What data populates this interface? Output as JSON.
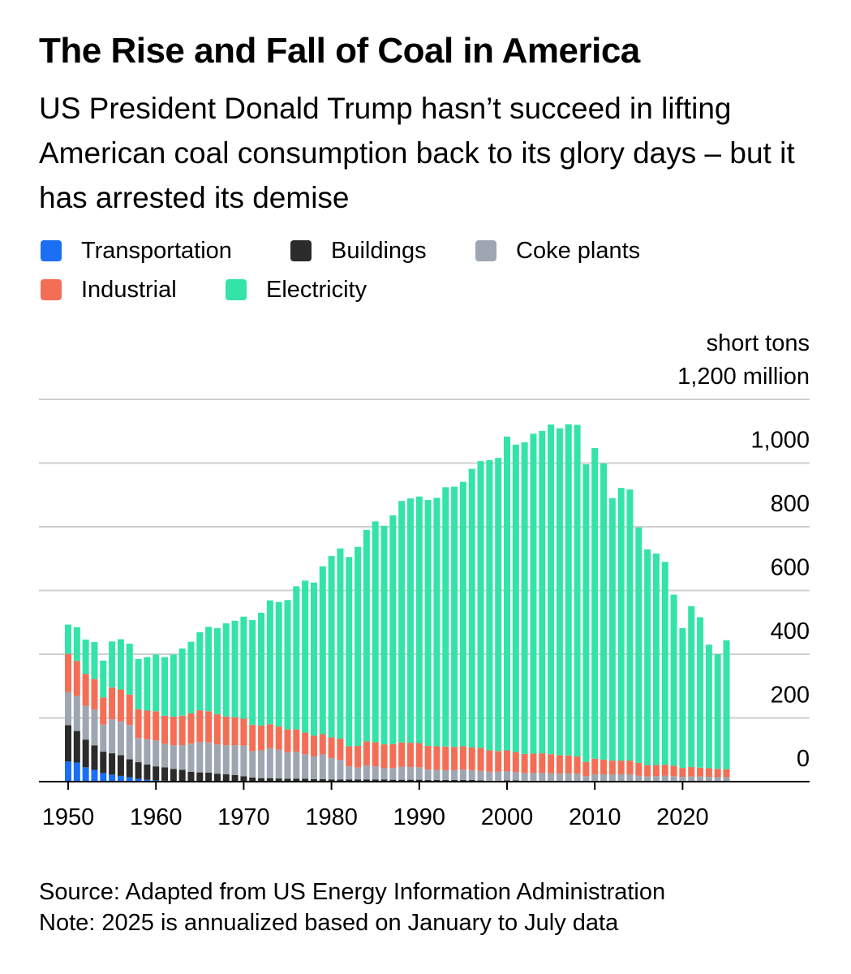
{
  "title": "The Rise and Fall of Coal in America",
  "subtitle": "US President Donald Trump hasn’t succeed in lifting American coal consumption back to its glory days – but it has arrested its demise",
  "legend": [
    {
      "name": "Transportation",
      "color": "#1a6ff5"
    },
    {
      "name": "Buildings",
      "color": "#2b2b2b"
    },
    {
      "name": "Coke plants",
      "color": "#9ea6b2"
    },
    {
      "name": "Industrial",
      "color": "#f46e55"
    },
    {
      "name": "Electricity",
      "color": "#34e3a8"
    }
  ],
  "footer": {
    "source": "Source: Adapted from US Energy Information Administration",
    "note": "Note: 2025 is annualized based on January to July data"
  },
  "chart_data": {
    "type": "bar",
    "stacked": true,
    "unit_label": "short tons",
    "y_top_label": "1,200 million",
    "ylim": [
      0,
      1200
    ],
    "y_ticks": [
      0,
      200,
      400,
      600,
      800,
      1000,
      1200
    ],
    "y_tick_labels": [
      "0",
      "200",
      "400",
      "600",
      "800",
      "1,000"
    ],
    "x_ticks": [
      1950,
      1960,
      1970,
      1980,
      1990,
      2000,
      2010,
      2020
    ],
    "grid": true,
    "y_axis_position": "right",
    "categories": [
      1950,
      1951,
      1952,
      1953,
      1954,
      1955,
      1956,
      1957,
      1958,
      1959,
      1960,
      1961,
      1962,
      1963,
      1964,
      1965,
      1966,
      1967,
      1968,
      1969,
      1970,
      1971,
      1972,
      1973,
      1974,
      1975,
      1976,
      1977,
      1978,
      1979,
      1980,
      1981,
      1982,
      1983,
      1984,
      1985,
      1986,
      1987,
      1988,
      1989,
      1990,
      1991,
      1992,
      1993,
      1994,
      1995,
      1996,
      1997,
      1998,
      1999,
      2000,
      2001,
      2002,
      2003,
      2004,
      2005,
      2006,
      2007,
      2008,
      2009,
      2010,
      2011,
      2012,
      2013,
      2014,
      2015,
      2016,
      2017,
      2018,
      2019,
      2020,
      2021,
      2022,
      2023,
      2024,
      2025
    ],
    "series": [
      {
        "name": "Transportation",
        "color": "#1a6ff5",
        "values": [
          63,
          60,
          45,
          37,
          27,
          22,
          18,
          14,
          9,
          6,
          4,
          3,
          2,
          2,
          1,
          1,
          1,
          1,
          1,
          1,
          1,
          0,
          0,
          0,
          0,
          0,
          0,
          0,
          0,
          0,
          0,
          0,
          0,
          0,
          0,
          0,
          0,
          0,
          0,
          0,
          0,
          0,
          0,
          0,
          0,
          0,
          0,
          0,
          0,
          0,
          0,
          0,
          0,
          0,
          0,
          0,
          0,
          0,
          0,
          0,
          0,
          0,
          0,
          0,
          0,
          0,
          0,
          0,
          0,
          0,
          0,
          0,
          0,
          0,
          0,
          0
        ]
      },
      {
        "name": "Buildings",
        "color": "#2b2b2b",
        "values": [
          114,
          99,
          87,
          77,
          67,
          67,
          65,
          56,
          52,
          48,
          44,
          42,
          38,
          35,
          30,
          28,
          27,
          24,
          22,
          20,
          16,
          13,
          11,
          11,
          10,
          9,
          9,
          9,
          8,
          8,
          7,
          7,
          7,
          7,
          7,
          7,
          7,
          6,
          6,
          6,
          6,
          5,
          5,
          5,
          5,
          5,
          5,
          4,
          3,
          3,
          4,
          4,
          3,
          3,
          3,
          3,
          2,
          3,
          3,
          2,
          2,
          2,
          2,
          2,
          2,
          2,
          1,
          1,
          1,
          1,
          1,
          1,
          1,
          1,
          1,
          1
        ]
      },
      {
        "name": "Coke plants",
        "color": "#9ea6b2",
        "values": [
          104,
          110,
          106,
          113,
          85,
          107,
          106,
          108,
          76,
          79,
          81,
          74,
          74,
          77,
          88,
          95,
          95,
          92,
          91,
          93,
          96,
          83,
          87,
          94,
          90,
          83,
          85,
          77,
          71,
          77,
          67,
          61,
          41,
          37,
          44,
          41,
          35,
          37,
          41,
          40,
          39,
          33,
          32,
          31,
          31,
          33,
          31,
          30,
          28,
          28,
          29,
          26,
          24,
          24,
          24,
          23,
          23,
          23,
          22,
          15,
          21,
          21,
          21,
          21,
          21,
          17,
          15,
          16,
          18,
          16,
          14,
          15,
          15,
          14,
          13,
          13
        ]
      },
      {
        "name": "Industrial",
        "color": "#f46e55",
        "values": [
          120,
          110,
          100,
          95,
          85,
          100,
          100,
          95,
          90,
          90,
          92,
          88,
          90,
          93,
          95,
          100,
          98,
          95,
          90,
          88,
          85,
          82,
          78,
          75,
          73,
          72,
          70,
          68,
          65,
          64,
          65,
          67,
          63,
          68,
          75,
          76,
          75,
          75,
          76,
          76,
          76,
          74,
          74,
          74,
          73,
          73,
          71,
          72,
          67,
          65,
          65,
          63,
          60,
          61,
          62,
          60,
          58,
          56,
          54,
          45,
          49,
          46,
          43,
          43,
          43,
          40,
          35,
          35,
          34,
          33,
          28,
          30,
          28,
          27,
          26,
          25
        ]
      },
      {
        "name": "Electricity",
        "color": "#34e3a8",
        "values": [
          92,
          106,
          108,
          116,
          116,
          144,
          158,
          160,
          158,
          168,
          178,
          184,
          195,
          211,
          225,
          245,
          265,
          270,
          293,
          303,
          320,
          329,
          354,
          389,
          391,
          406,
          449,
          477,
          481,
          527,
          569,
          597,
          594,
          625,
          664,
          693,
          686,
          718,
          758,
          767,
          774,
          772,
          780,
          814,
          817,
          830,
          875,
          900,
          911,
          920,
          985,
          965,
          978,
          1004,
          1012,
          1035,
          1026,
          1040,
          1041,
          934,
          975,
          930,
          824,
          856,
          851,
          739,
          678,
          664,
          637,
          537,
          439,
          505,
          472,
          388,
          360,
          405
        ]
      }
    ]
  }
}
